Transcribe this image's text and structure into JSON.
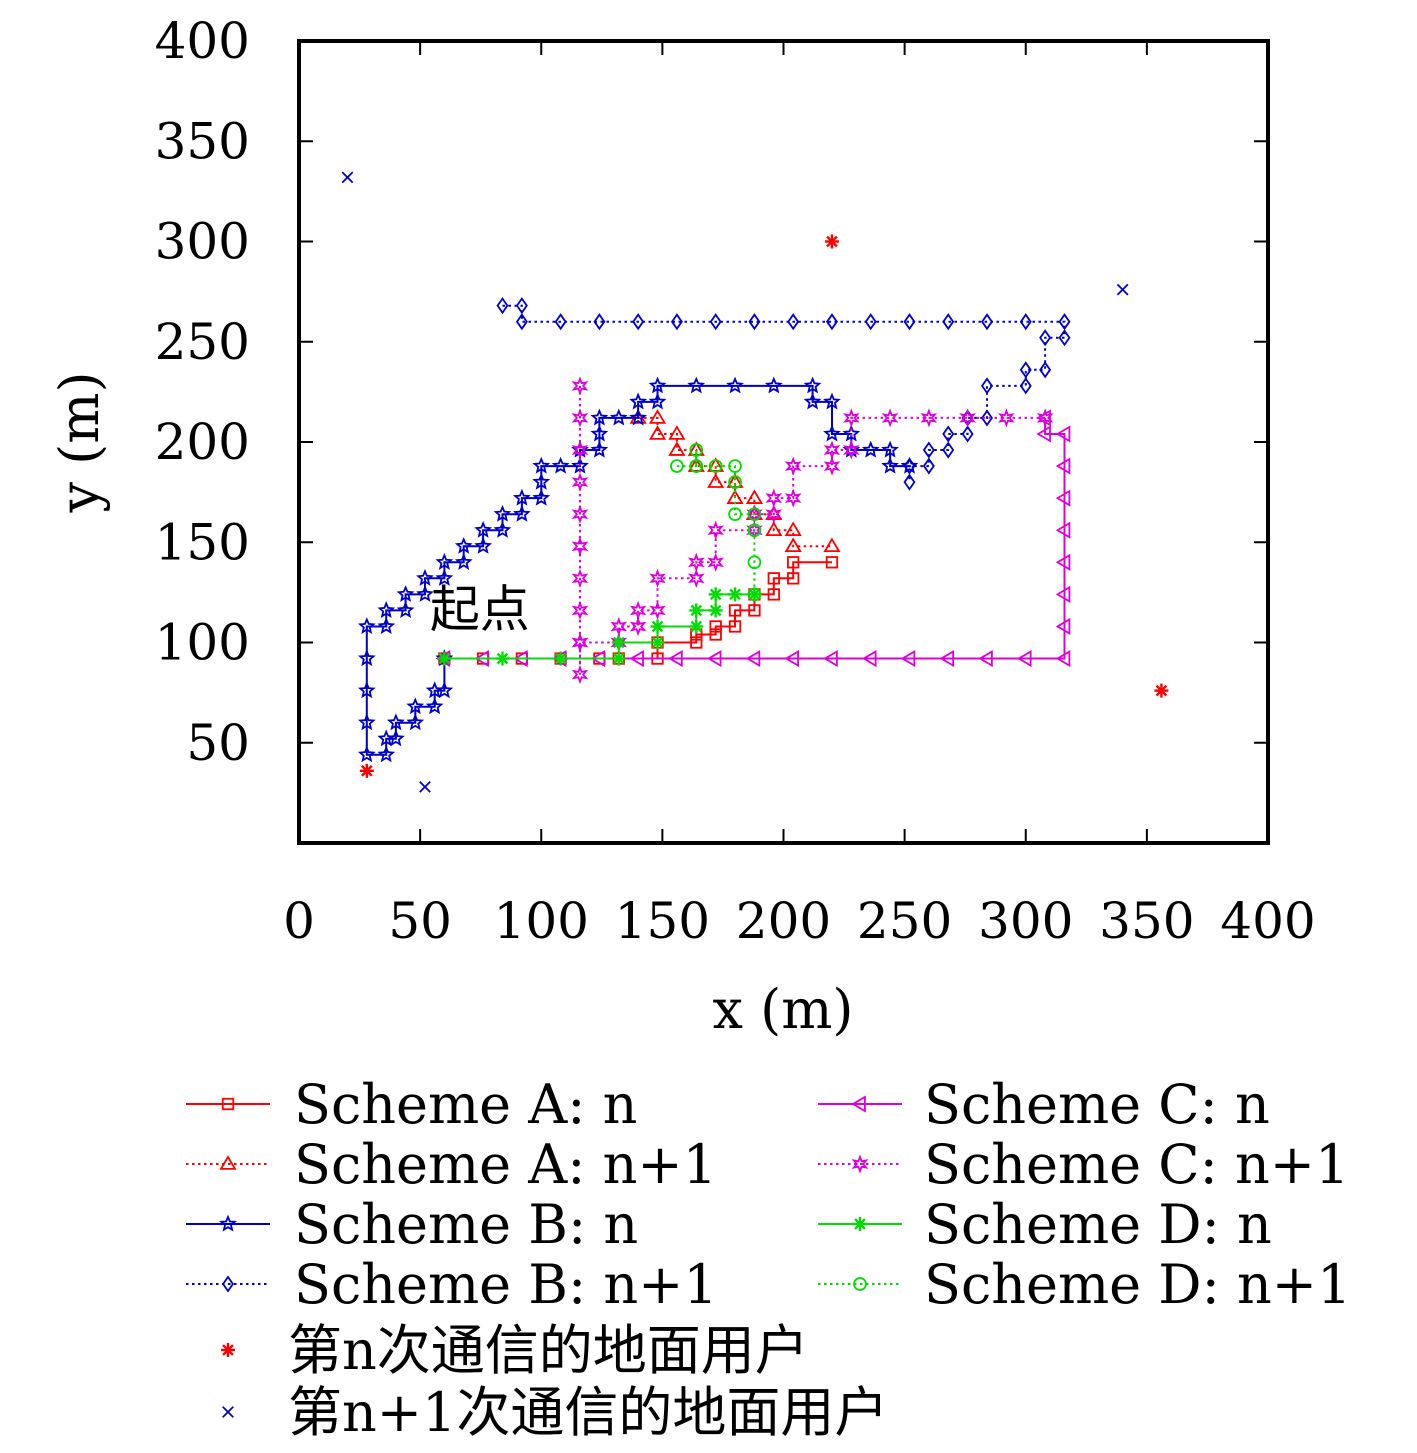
{
  "chart_data": {
    "type": "line",
    "xlabel": "x (m)",
    "ylabel": "y (m)",
    "xlim": [
      0,
      400
    ],
    "ylim": [
      0,
      400
    ],
    "xticks": [
      "0",
      "50",
      "100",
      "150",
      "200",
      "250",
      "300",
      "350",
      "400"
    ],
    "yticks": [
      "50",
      "100",
      "150",
      "200",
      "250",
      "300",
      "350",
      "400"
    ],
    "grid": false,
    "legend_placement": "bottom",
    "annotation": {
      "text": "起点",
      "x": 54,
      "y": 108
    },
    "series": [
      {
        "name": "Scheme A: n",
        "color": "#ff0000",
        "marker": "square",
        "dash": "solid",
        "points": [
          [
            60,
            92
          ],
          [
            76,
            92
          ],
          [
            92,
            92
          ],
          [
            108,
            92
          ],
          [
            124,
            92
          ],
          [
            132,
            92
          ],
          [
            148,
            92
          ],
          [
            148,
            100
          ],
          [
            164,
            100
          ],
          [
            164,
            104
          ],
          [
            172,
            104
          ],
          [
            172,
            108
          ],
          [
            180,
            108
          ],
          [
            180,
            116
          ],
          [
            188,
            116
          ],
          [
            188,
            124
          ],
          [
            196,
            124
          ],
          [
            196,
            132
          ],
          [
            204,
            132
          ],
          [
            204,
            140
          ],
          [
            220,
            140
          ]
        ]
      },
      {
        "name": "Scheme A: n+1",
        "color": "#ff0000",
        "marker": "triangle",
        "dash": "dotted",
        "points": [
          [
            140,
            212
          ],
          [
            148,
            212
          ],
          [
            148,
            204
          ],
          [
            156,
            204
          ],
          [
            156,
            196
          ],
          [
            164,
            196
          ],
          [
            164,
            188
          ],
          [
            172,
            188
          ],
          [
            172,
            180
          ],
          [
            180,
            180
          ],
          [
            180,
            172
          ],
          [
            188,
            172
          ],
          [
            188,
            164
          ],
          [
            196,
            164
          ],
          [
            196,
            156
          ],
          [
            204,
            156
          ],
          [
            204,
            148
          ],
          [
            220,
            148
          ]
        ]
      },
      {
        "name": "Scheme B: n",
        "color": "#0000cc",
        "marker": "star",
        "dash": "solid",
        "points": [
          [
            60,
            92
          ],
          [
            60,
            76
          ],
          [
            56,
            76
          ],
          [
            56,
            68
          ],
          [
            48,
            68
          ],
          [
            48,
            60
          ],
          [
            40,
            60
          ],
          [
            40,
            52
          ],
          [
            36,
            52
          ],
          [
            36,
            44
          ],
          [
            28,
            44
          ],
          [
            28,
            60
          ],
          [
            28,
            76
          ],
          [
            28,
            92
          ],
          [
            28,
            108
          ],
          [
            36,
            108
          ],
          [
            36,
            116
          ],
          [
            44,
            116
          ],
          [
            44,
            124
          ],
          [
            52,
            124
          ],
          [
            52,
            132
          ],
          [
            60,
            132
          ],
          [
            60,
            140
          ],
          [
            68,
            140
          ],
          [
            68,
            148
          ],
          [
            76,
            148
          ],
          [
            76,
            156
          ],
          [
            84,
            156
          ],
          [
            84,
            164
          ],
          [
            92,
            164
          ],
          [
            92,
            172
          ],
          [
            100,
            172
          ],
          [
            100,
            180
          ],
          [
            100,
            188
          ],
          [
            108,
            188
          ],
          [
            116,
            188
          ],
          [
            116,
            196
          ],
          [
            124,
            196
          ],
          [
            124,
            204
          ],
          [
            124,
            212
          ],
          [
            132,
            212
          ],
          [
            140,
            212
          ],
          [
            140,
            220
          ],
          [
            148,
            220
          ],
          [
            148,
            228
          ],
          [
            164,
            228
          ],
          [
            180,
            228
          ],
          [
            196,
            228
          ],
          [
            212,
            228
          ],
          [
            212,
            220
          ],
          [
            220,
            220
          ],
          [
            220,
            204
          ],
          [
            228,
            204
          ],
          [
            228,
            196
          ],
          [
            236,
            196
          ],
          [
            244,
            196
          ],
          [
            244,
            188
          ],
          [
            252,
            188
          ]
        ]
      },
      {
        "name": "Scheme B: n+1",
        "color": "#0000cc",
        "marker": "diamond",
        "dash": "dotted",
        "points": [
          [
            84,
            268
          ],
          [
            92,
            268
          ],
          [
            92,
            260
          ],
          [
            108,
            260
          ],
          [
            124,
            260
          ],
          [
            140,
            260
          ],
          [
            156,
            260
          ],
          [
            172,
            260
          ],
          [
            188,
            260
          ],
          [
            204,
            260
          ],
          [
            220,
            260
          ],
          [
            236,
            260
          ],
          [
            252,
            260
          ],
          [
            268,
            260
          ],
          [
            284,
            260
          ],
          [
            300,
            260
          ],
          [
            316,
            260
          ],
          [
            316,
            252
          ],
          [
            308,
            252
          ],
          [
            308,
            236
          ],
          [
            300,
            236
          ],
          [
            300,
            228
          ],
          [
            284,
            228
          ],
          [
            284,
            212
          ],
          [
            276,
            212
          ],
          [
            276,
            204
          ],
          [
            268,
            204
          ],
          [
            268,
            196
          ],
          [
            260,
            196
          ],
          [
            260,
            188
          ],
          [
            252,
            188
          ],
          [
            252,
            180
          ]
        ]
      },
      {
        "name": "Scheme C: n",
        "color": "#dd00dd",
        "marker": "triangle-left",
        "dash": "solid",
        "points": [
          [
            60,
            92
          ],
          [
            76,
            92
          ],
          [
            92,
            92
          ],
          [
            108,
            92
          ],
          [
            124,
            92
          ],
          [
            140,
            92
          ],
          [
            156,
            92
          ],
          [
            172,
            92
          ],
          [
            188,
            92
          ],
          [
            204,
            92
          ],
          [
            220,
            92
          ],
          [
            236,
            92
          ],
          [
            252,
            92
          ],
          [
            268,
            92
          ],
          [
            284,
            92
          ],
          [
            300,
            92
          ],
          [
            316,
            92
          ],
          [
            316,
            108
          ],
          [
            316,
            124
          ],
          [
            316,
            140
          ],
          [
            316,
            156
          ],
          [
            316,
            172
          ],
          [
            316,
            188
          ],
          [
            316,
            204
          ],
          [
            308,
            204
          ],
          [
            308,
            212
          ]
        ]
      },
      {
        "name": "Scheme C: n+1",
        "color": "#dd00dd",
        "marker": "starhex",
        "dash": "dotted",
        "points": [
          [
            116,
            228
          ],
          [
            116,
            212
          ],
          [
            116,
            196
          ],
          [
            116,
            180
          ],
          [
            116,
            164
          ],
          [
            116,
            148
          ],
          [
            116,
            132
          ],
          [
            116,
            116
          ],
          [
            116,
            100
          ],
          [
            116,
            84
          ],
          [
            116,
            100
          ],
          [
            132,
            100
          ],
          [
            132,
            108
          ],
          [
            140,
            108
          ],
          [
            140,
            116
          ],
          [
            148,
            116
          ],
          [
            148,
            132
          ],
          [
            164,
            132
          ],
          [
            164,
            140
          ],
          [
            172,
            140
          ],
          [
            172,
            156
          ],
          [
            188,
            156
          ],
          [
            188,
            164
          ],
          [
            196,
            164
          ],
          [
            196,
            172
          ],
          [
            204,
            172
          ],
          [
            204,
            188
          ],
          [
            220,
            188
          ],
          [
            220,
            196
          ],
          [
            228,
            196
          ],
          [
            228,
            212
          ],
          [
            244,
            212
          ],
          [
            260,
            212
          ],
          [
            276,
            212
          ],
          [
            292,
            212
          ],
          [
            308,
            212
          ]
        ]
      },
      {
        "name": "Scheme D: n",
        "color": "#00dd00",
        "marker": "asterisk",
        "dash": "solid",
        "points": [
          [
            60,
            92
          ],
          [
            84,
            92
          ],
          [
            108,
            92
          ],
          [
            132,
            92
          ],
          [
            132,
            100
          ],
          [
            148,
            100
          ],
          [
            148,
            108
          ],
          [
            164,
            108
          ],
          [
            164,
            116
          ],
          [
            172,
            116
          ],
          [
            172,
            124
          ],
          [
            180,
            124
          ],
          [
            188,
            124
          ]
        ]
      },
      {
        "name": "Scheme D: n+1",
        "color": "#00dd00",
        "marker": "circle",
        "dash": "dotted",
        "points": [
          [
            156,
            188
          ],
          [
            164,
            188
          ],
          [
            164,
            196
          ],
          [
            164,
            188
          ],
          [
            172,
            188
          ],
          [
            180,
            188
          ],
          [
            180,
            180
          ],
          [
            180,
            164
          ],
          [
            188,
            164
          ],
          [
            188,
            156
          ],
          [
            188,
            140
          ],
          [
            188,
            124
          ]
        ]
      },
      {
        "name": "第n次通信的地面用户",
        "color": "#ff0000",
        "marker": "asterisk",
        "dash": "none",
        "points": [
          [
            28,
            36
          ],
          [
            220,
            300
          ],
          [
            356,
            76
          ]
        ]
      },
      {
        "name": "第n+1次通信的地面用户",
        "color": "#0000cc",
        "marker": "cross",
        "dash": "none",
        "points": [
          [
            20,
            332
          ],
          [
            52,
            28
          ],
          [
            340,
            276
          ]
        ]
      }
    ]
  }
}
